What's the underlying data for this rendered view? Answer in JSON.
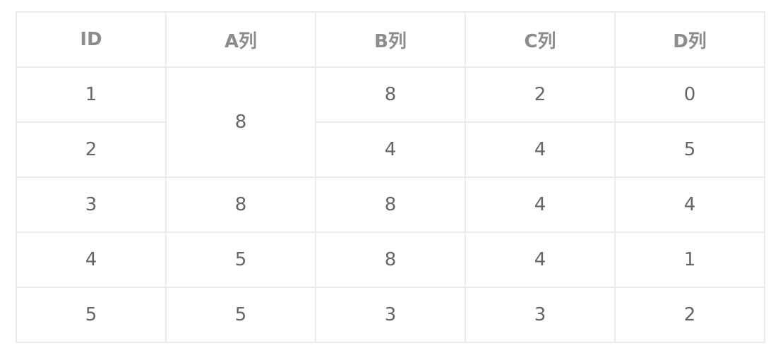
{
  "table": {
    "headers": [
      "ID",
      "A列",
      "B列",
      "C列",
      "D列"
    ],
    "rows": [
      {
        "id": "1",
        "a": "8",
        "b": "8",
        "c": "2",
        "d": "0"
      },
      {
        "id": "2",
        "b": "4",
        "c": "4",
        "d": "5"
      },
      {
        "id": "3",
        "a": "8",
        "b": "8",
        "c": "4",
        "d": "4"
      },
      {
        "id": "4",
        "a": "5",
        "b": "8",
        "c": "4",
        "d": "1"
      },
      {
        "id": "5",
        "a": "5",
        "b": "3",
        "c": "3",
        "d": "2"
      }
    ]
  }
}
